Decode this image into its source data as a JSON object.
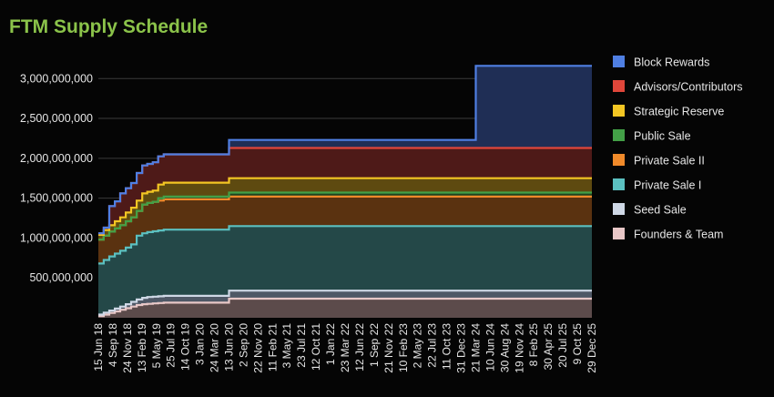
{
  "chart_data": {
    "type": "area",
    "stacked": true,
    "title": "FTM Supply Schedule",
    "xlabel": "",
    "ylabel": "",
    "ylim": [
      0,
      3300000000
    ],
    "y_ticks": [
      500000000,
      1000000000,
      1500000000,
      2000000000,
      2500000000,
      3000000000
    ],
    "y_tick_labels": [
      "500,000,000",
      "1,000,000,000",
      "1,500,000,000",
      "2,000,000,000",
      "2,500,000,000",
      "3,000,000,000"
    ],
    "grid": true,
    "legend_position": "right",
    "x_tick_labels": [
      "15 Jun 18",
      "4 Sep 18",
      "24 Nov 18",
      "13 Feb 19",
      "5 May 19",
      "25 Jul 19",
      "14 Oct 19",
      "3 Jan 20",
      "24 Mar 20",
      "13 Jun 20",
      "2 Sep 20",
      "22 Nov 20",
      "11 Feb 21",
      "3 May 21",
      "23 Jul 21",
      "12 Oct 21",
      "1 Jan 22",
      "23 Mar 22",
      "12 Jun 22",
      "1 Sep 22",
      "21 Nov 22",
      "10 Feb 23",
      "2 May 23",
      "22 Jul 23",
      "11 Oct 23",
      "31 Dec 23",
      "21 Mar 24",
      "10 Jun 24",
      "30 Aug 24",
      "19 Nov 24",
      "8 Feb 25",
      "30 Apr 25",
      "20 Jul 25",
      "9 Oct 25",
      "29 Dec 25"
    ],
    "x": [
      "15 Jun 18",
      "15 Jul 18",
      "15 Aug 18",
      "15 Sep 18",
      "15 Oct 18",
      "15 Nov 18",
      "15 Dec 18",
      "15 Jan 19",
      "15 Feb 19",
      "15 Mar 19",
      "15 Apr 19",
      "15 May 19",
      "15 Jun 19",
      "13 Jun 20",
      "21 Mar 24",
      "29 Dec 25"
    ],
    "series": [
      {
        "name": "Founders & Team",
        "color": "#e8c7c7",
        "fill": "#5c4b4b",
        "values": [
          20000000,
          40000000,
          60000000,
          80000000,
          100000000,
          120000000,
          140000000,
          160000000,
          170000000,
          175000000,
          180000000,
          185000000,
          190000000,
          240000000,
          240000000,
          240000000
        ]
      },
      {
        "name": "Seed Sale",
        "color": "#cfd8e6",
        "fill": "#4f5866",
        "values": [
          20000000,
          25000000,
          30000000,
          35000000,
          40000000,
          50000000,
          60000000,
          70000000,
          80000000,
          85000000,
          85000000,
          85000000,
          85000000,
          100000000,
          100000000,
          100000000
        ]
      },
      {
        "name": "Private Sale I",
        "color": "#5bc0c0",
        "fill": "#244848",
        "values": [
          640000000,
          660000000,
          680000000,
          690000000,
          700000000,
          710000000,
          720000000,
          800000000,
          810000000,
          815000000,
          820000000,
          825000000,
          830000000,
          810000000,
          810000000,
          810000000
        ]
      },
      {
        "name": "Private Sale II",
        "color": "#f08a2a",
        "fill": "#5a3210",
        "values": [
          300000000,
          305000000,
          310000000,
          315000000,
          320000000,
          330000000,
          340000000,
          310000000,
          360000000,
          365000000,
          370000000,
          375000000,
          380000000,
          370000000,
          370000000,
          370000000
        ]
      },
      {
        "name": "Public Sale",
        "color": "#43a047",
        "fill": "#1e4520",
        "values": [
          0,
          0,
          0,
          0,
          0,
          0,
          0,
          0,
          0,
          0,
          0,
          30000000,
          35000000,
          50000000,
          50000000,
          50000000
        ]
      },
      {
        "name": "Strategic Reserve",
        "color": "#f3c623",
        "fill": "#5e4a10",
        "values": [
          60000000,
          70000000,
          80000000,
          90000000,
          100000000,
          110000000,
          120000000,
          130000000,
          140000000,
          140000000,
          140000000,
          170000000,
          175000000,
          180000000,
          180000000,
          180000000
        ]
      },
      {
        "name": "Advisors/Contributors",
        "color": "#e0463a",
        "fill": "#4e1a18",
        "values": [
          20000000,
          30000000,
          240000000,
          250000000,
          300000000,
          305000000,
          310000000,
          345000000,
          350000000,
          350000000,
          355000000,
          355000000,
          355000000,
          380000000,
          380000000,
          380000000
        ]
      },
      {
        "name": "Block Rewards",
        "color": "#4f7fe3",
        "fill": "#1f2e55",
        "values": [
          0,
          0,
          0,
          0,
          0,
          0,
          0,
          0,
          0,
          0,
          0,
          0,
          0,
          100000000,
          1030000000,
          1030000000
        ]
      }
    ]
  }
}
